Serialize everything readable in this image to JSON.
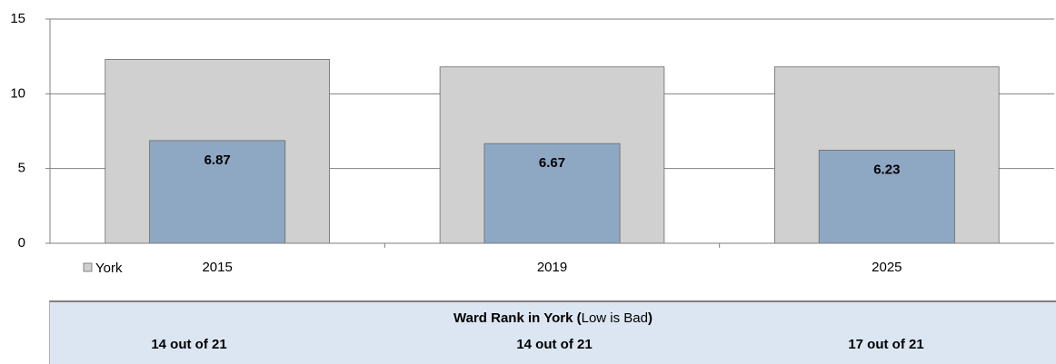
{
  "chart_data": {
    "type": "bar",
    "categories": [
      "2015",
      "2019",
      "2025"
    ],
    "series": [
      {
        "name": "York",
        "color": "#d0d0d0",
        "values": [
          12.3,
          11.8,
          11.8
        ]
      },
      {
        "color": "#8ea8c3",
        "values": [
          6.87,
          6.67,
          6.23
        ],
        "show_labels": true
      }
    ],
    "ylim": [
      0,
      15
    ],
    "yticks": [
      0,
      5,
      10,
      15
    ],
    "grid": true,
    "legend": "bottom-left"
  },
  "rank_table": {
    "title_parts": [
      "Ward Rank in York (",
      "Low is Bad",
      ")"
    ],
    "cells": [
      "14 out of 21",
      "14 out of 21",
      "17 out of 21"
    ]
  }
}
